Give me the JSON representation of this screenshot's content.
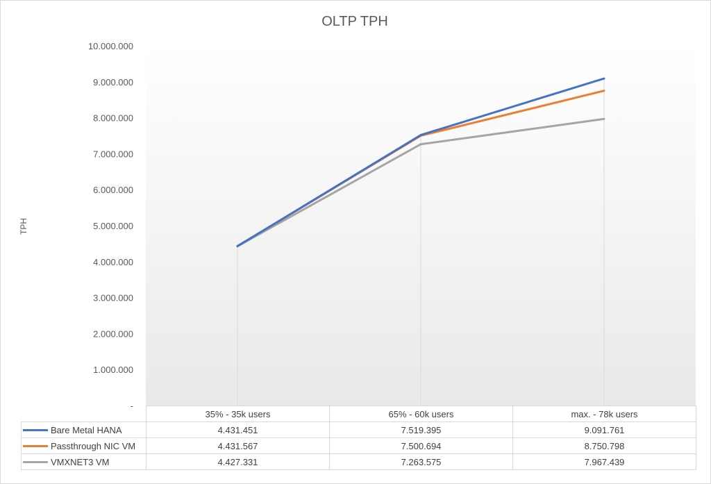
{
  "chart_data": {
    "type": "line",
    "title": "OLTP TPH",
    "xlabel": "",
    "ylabel": "TPH",
    "categories": [
      "35% - 35k users",
      "65% - 60k users",
      "max. - 78k users"
    ],
    "ylim": [
      0,
      10000000
    ],
    "y_ticks": [
      "-",
      "1.000.000",
      "2.000.000",
      "3.000.000",
      "4.000.000",
      "5.000.000",
      "6.000.000",
      "7.000.000",
      "8.000.000",
      "9.000.000",
      "10.000.000"
    ],
    "y_tick_values": [
      0,
      1000000,
      2000000,
      3000000,
      4000000,
      5000000,
      6000000,
      7000000,
      8000000,
      9000000,
      10000000
    ],
    "grid": "vertical drop lines only",
    "legend": "data table below chart",
    "series": [
      {
        "name": "Bare Metal HANA",
        "color": "#4472c4",
        "values": [
          4431451,
          7519395,
          9091761
        ],
        "labels": [
          "4.431.451",
          "7.519.395",
          "9.091.761"
        ]
      },
      {
        "name": "Passthrough NIC VM",
        "color": "#ed7d31",
        "values": [
          4431567,
          7500694,
          8750798
        ],
        "labels": [
          "4.431.567",
          "7.500.694",
          "8.750.798"
        ]
      },
      {
        "name": "VMXNET3 VM",
        "color": "#a5a5a5",
        "values": [
          4427331,
          7263575,
          7967439
        ],
        "labels": [
          "4.427.331",
          "7.263.575",
          "7.967.439"
        ]
      }
    ]
  }
}
